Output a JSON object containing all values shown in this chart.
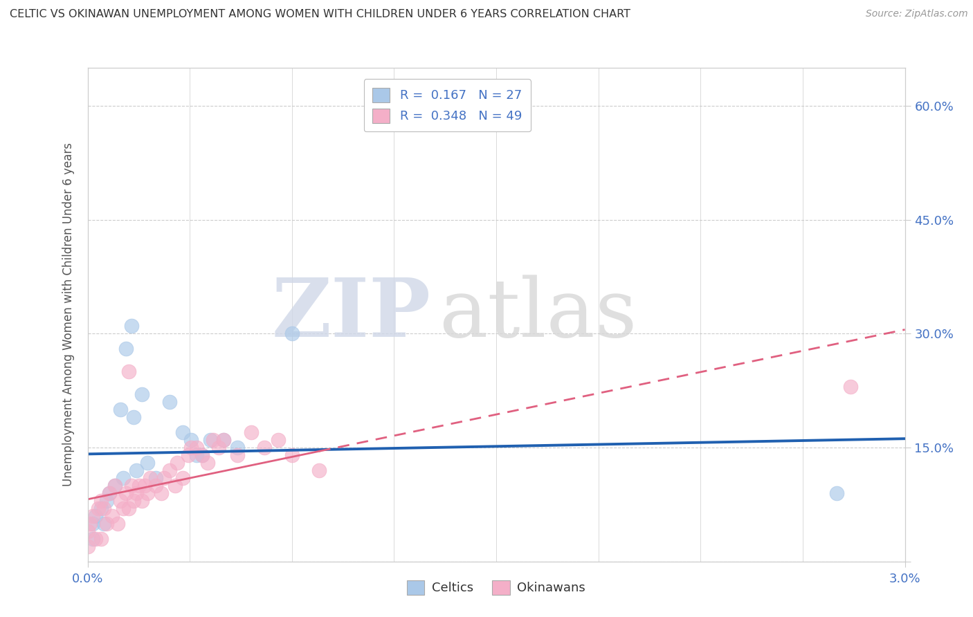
{
  "title": "CELTIC VS OKINAWAN UNEMPLOYMENT AMONG WOMEN WITH CHILDREN UNDER 6 YEARS CORRELATION CHART",
  "source": "Source: ZipAtlas.com",
  "ylabel": "Unemployment Among Women with Children Under 6 years",
  "xlim": [
    0.0,
    3.0
  ],
  "ylim": [
    0.0,
    65.0
  ],
  "yticks": [
    0,
    15,
    30,
    45,
    60
  ],
  "ytick_labels": [
    "",
    "15.0%",
    "30.0%",
    "45.0%",
    "60.0%"
  ],
  "xtick_labels": [
    "0.0%",
    "3.0%"
  ],
  "watermark_zip": "ZIP",
  "watermark_atlas": "atlas",
  "legend_celtic_R": "0.167",
  "legend_celtic_N": "27",
  "legend_okinawan_R": "0.348",
  "legend_okinawan_N": "49",
  "celtic_color": "#aac8e8",
  "okinawan_color": "#f4afc8",
  "celtic_line_color": "#2060b0",
  "okinawan_line_color": "#e06080",
  "text_color": "#4472c4",
  "background_color": "#ffffff",
  "celtic_points_x": [
    0.02,
    0.02,
    0.03,
    0.05,
    0.06,
    0.07,
    0.08,
    0.1,
    0.12,
    0.13,
    0.14,
    0.16,
    0.17,
    0.18,
    0.2,
    0.22,
    0.25,
    0.3,
    0.35,
    0.38,
    0.4,
    0.42,
    0.45,
    0.5,
    0.55,
    0.75,
    2.75
  ],
  "celtic_points_y": [
    5,
    3,
    6,
    7,
    5,
    8,
    9,
    10,
    20,
    11,
    28,
    31,
    19,
    12,
    22,
    13,
    11,
    21,
    17,
    16,
    14,
    14,
    16,
    16,
    15,
    30,
    9
  ],
  "okinawan_points_x": [
    0.0,
    0.0,
    0.01,
    0.02,
    0.03,
    0.04,
    0.05,
    0.05,
    0.06,
    0.07,
    0.08,
    0.09,
    0.1,
    0.11,
    0.12,
    0.13,
    0.14,
    0.15,
    0.15,
    0.16,
    0.17,
    0.18,
    0.19,
    0.2,
    0.21,
    0.22,
    0.23,
    0.25,
    0.27,
    0.28,
    0.3,
    0.32,
    0.33,
    0.35,
    0.37,
    0.38,
    0.4,
    0.42,
    0.44,
    0.46,
    0.48,
    0.5,
    0.55,
    0.6,
    0.65,
    0.7,
    0.75,
    0.85,
    2.8
  ],
  "okinawan_points_y": [
    4,
    2,
    5,
    6,
    3,
    7,
    8,
    3,
    7,
    5,
    9,
    6,
    10,
    5,
    8,
    7,
    9,
    25,
    7,
    10,
    8,
    9,
    10,
    8,
    10,
    9,
    11,
    10,
    9,
    11,
    12,
    10,
    13,
    11,
    14,
    15,
    15,
    14,
    13,
    16,
    15,
    16,
    14,
    17,
    15,
    16,
    14,
    12,
    23
  ]
}
